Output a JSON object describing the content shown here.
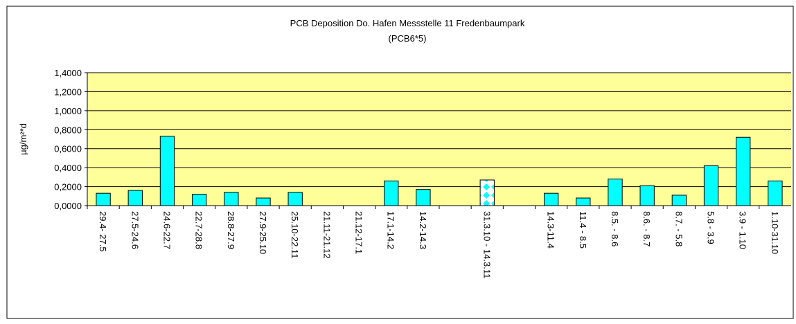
{
  "chart_data": {
    "type": "bar",
    "title": "PCB Deposition Do. Hafen Messstelle 11 Fredenbaumpark",
    "subtitle": "(PCB6*5)",
    "y_label": "µg/m²*d",
    "categories": [
      "29.4- 27.5",
      "27.5-24.6",
      "24.6-22.7",
      "22.7-28.8",
      "28.8-27.9",
      "27.9-25.10",
      "25.10-22.11",
      "21.11-21.12",
      "21.12-17.1",
      "17.1-14.2",
      "14.2-14.3",
      null,
      "31.3.10 - 14.3.11",
      null,
      "14.3-11.4",
      "11.4 - 8.5",
      "8.5. - 8.6",
      "8.6. - 8.7",
      "8.7. - 5.8",
      "5.8 - 3.9",
      "3.9 - 1.10",
      "1.10-31.10"
    ],
    "values": [
      0.13,
      0.16,
      0.73,
      0.12,
      0.14,
      0.08,
      0.14,
      null,
      null,
      0.26,
      0.17,
      null,
      0.27,
      null,
      0.13,
      0.08,
      0.28,
      0.21,
      0.11,
      0.42,
      0.72,
      0.26
    ],
    "color": "#00ffff",
    "pattern_bars": [
      12
    ],
    "ylim": [
      0,
      1.4
    ],
    "yticks": [
      {
        "value": 0,
        "label": "0,0000"
      },
      {
        "value": 0.2,
        "label": "0,2000"
      },
      {
        "value": 0.4,
        "label": "0,4000"
      },
      {
        "value": 0.6,
        "label": "0,6000"
      },
      {
        "value": 0.8,
        "label": "0,8000"
      },
      {
        "value": 1.0,
        "label": "1,0000"
      },
      {
        "value": 1.2,
        "label": "1,2000"
      },
      {
        "value": 1.4,
        "label": "1,4000"
      }
    ],
    "grid": true
  }
}
